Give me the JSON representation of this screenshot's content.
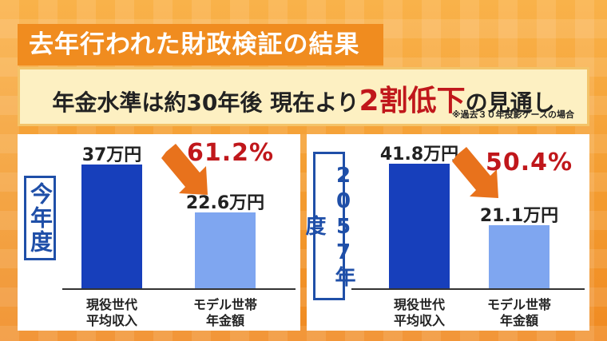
{
  "title": "去年行われた財政検証の結果",
  "banner": {
    "part1": "年金水準は約30年後 現在より",
    "highlight": "2割低下",
    "part2": "の見通し",
    "note": "※過去３０年投影ケースの場合"
  },
  "colors": {
    "current_bar": "#173fbb",
    "pension_bar": "#7fa6f0",
    "accent": "#c0171b",
    "year_box": "#1f4fa8",
    "arrow": "#e8721c"
  },
  "chart_data": [
    {
      "type": "bar",
      "panel_label": "今年度",
      "categories": [
        "現役世代\n平均収入",
        "モデル世帯\n年金額"
      ],
      "category_lines": [
        [
          "現役世代",
          "平均収入"
        ],
        [
          "モデル世帯",
          "年金額"
        ]
      ],
      "values": [
        37,
        22.6
      ],
      "value_labels": [
        "37万円",
        "22.6万円"
      ],
      "unit": "万円",
      "ratio_label": "61.2%",
      "ylim": [
        0,
        40
      ]
    },
    {
      "type": "bar",
      "panel_label": "2057年度",
      "categories": [
        "現役世代\n平均収入",
        "モデル世帯\n年金額"
      ],
      "category_lines": [
        [
          "現役世代",
          "平均収入"
        ],
        [
          "モデル世帯",
          "年金額"
        ]
      ],
      "values": [
        41.8,
        21.1
      ],
      "value_labels": [
        "41.8万円",
        "21.1万円"
      ],
      "unit": "万円",
      "ratio_label": "50.4%",
      "ylim": [
        0,
        45
      ]
    }
  ]
}
